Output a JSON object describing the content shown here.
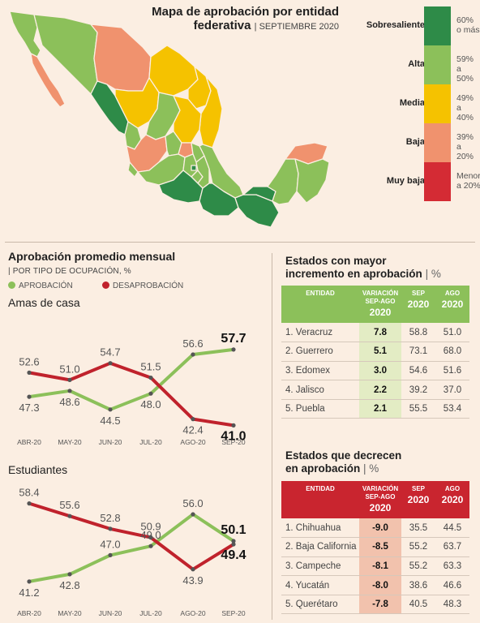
{
  "map": {
    "title_line1": "Mapa de aprobación por entidad",
    "title_line2": "federativa",
    "subtitle": "SEPTIEMBRE 2020",
    "colors": {
      "sobresaliente": "#2e8b48",
      "alta": "#8cc05a",
      "media": "#f5c200",
      "baja": "#f0926e",
      "muy_baja": "#d42b34"
    },
    "legend": [
      {
        "label": "Sobresaliente",
        "range1": "60%",
        "range2": "o más",
        "color": "#2e8b48"
      },
      {
        "label": "Alta",
        "range1": "59%",
        "range2": "a 50%",
        "color": "#8cc05a"
      },
      {
        "label": "Media",
        "range1": "49%",
        "range2": "a 40%",
        "color": "#f5c200"
      },
      {
        "label": "Baja",
        "range1": "39%",
        "range2": "a 20%",
        "color": "#f0926e"
      },
      {
        "label": "Muy baja",
        "range1": "Menor",
        "range2": "a 20%",
        "color": "#d42b34"
      }
    ]
  },
  "monthly": {
    "title": "Aprobación promedio mensual",
    "subtitle": "POR TIPO DE OCUPACIÓN, %",
    "legend_approval": "APROBACIÓN",
    "legend_disapproval": "DESAPROBACIÓN",
    "approval_color": "#8cc05a",
    "disapproval_color": "#c0222c"
  },
  "chart_data": [
    {
      "type": "line",
      "title": "Amas de casa",
      "categories": [
        "ABR-20",
        "MAY-20",
        "JUN-20",
        "JUL-20",
        "AGO-20",
        "SEP-20"
      ],
      "series": [
        {
          "name": "APROBACIÓN",
          "values": [
            47.3,
            48.6,
            44.5,
            48.0,
            56.6,
            57.7
          ]
        },
        {
          "name": "DESAPROBACIÓN",
          "values": [
            52.6,
            51.0,
            54.7,
            51.5,
            42.4,
            41.0
          ]
        }
      ]
    },
    {
      "type": "line",
      "title": "Estudiantes",
      "categories": [
        "ABR-20",
        "MAY-20",
        "JUN-20",
        "JUL-20",
        "AGO-20",
        "SEP-20"
      ],
      "series": [
        {
          "name": "APROBACIÓN",
          "values": [
            41.2,
            42.8,
            47.0,
            49.0,
            56.0,
            50.1
          ]
        },
        {
          "name": "DESAPROBACIÓN",
          "values": [
            58.4,
            55.6,
            52.8,
            50.9,
            43.9,
            49.4
          ]
        }
      ]
    }
  ],
  "increase": {
    "title_line1": "Estados con mayor",
    "title_line2": "incremento en aprobación",
    "unit": "%",
    "header_color": "#8cc05a",
    "var_color": "#e3ecc4",
    "headers": {
      "entidad": "ENTIDAD",
      "variacion1": "VARIACIÓN",
      "variacion2": "SEP-AGO",
      "variacion_year": "2020",
      "sep": "SEP",
      "sep_year": "2020",
      "ago": "AGO",
      "ago_year": "2020"
    },
    "rows": [
      {
        "entidad": "1. Veracruz",
        "var": "7.8",
        "sep": "58.8",
        "ago": "51.0"
      },
      {
        "entidad": "2. Guerrero",
        "var": "5.1",
        "sep": "73.1",
        "ago": "68.0"
      },
      {
        "entidad": "3. Edomex",
        "var": "3.0",
        "sep": "54.6",
        "ago": "51.6"
      },
      {
        "entidad": "4. Jalisco",
        "var": "2.2",
        "sep": "39.2",
        "ago": "37.0"
      },
      {
        "entidad": "5. Puebla",
        "var": "2.1",
        "sep": "55.5",
        "ago": "53.4"
      }
    ]
  },
  "decrease": {
    "title_line1": "Estados que decrecen",
    "title_line2": "en aprobación",
    "unit": "%",
    "header_color": "#c9252f",
    "var_color": "#f2c2ad",
    "headers": {
      "entidad": "ENTIDAD",
      "variacion1": "VARIACIÓN",
      "variacion2": "SEP-AGO",
      "variacion_year": "2020",
      "sep": "SEP",
      "sep_year": "2020",
      "ago": "AGO",
      "ago_year": "2020"
    },
    "rows": [
      {
        "entidad": "1. Chihuahua",
        "var": "-9.0",
        "sep": "35.5",
        "ago": "44.5"
      },
      {
        "entidad": "2. Baja California",
        "var": "-8.5",
        "sep": "55.2",
        "ago": "63.7"
      },
      {
        "entidad": "3. Campeche",
        "var": "-8.1",
        "sep": "55.2",
        "ago": "63.3"
      },
      {
        "entidad": "4. Yucatán",
        "var": "-8.0",
        "sep": "38.6",
        "ago": "46.6"
      },
      {
        "entidad": "5. Querétaro",
        "var": "-7.8",
        "sep": "40.5",
        "ago": "48.3"
      }
    ]
  }
}
